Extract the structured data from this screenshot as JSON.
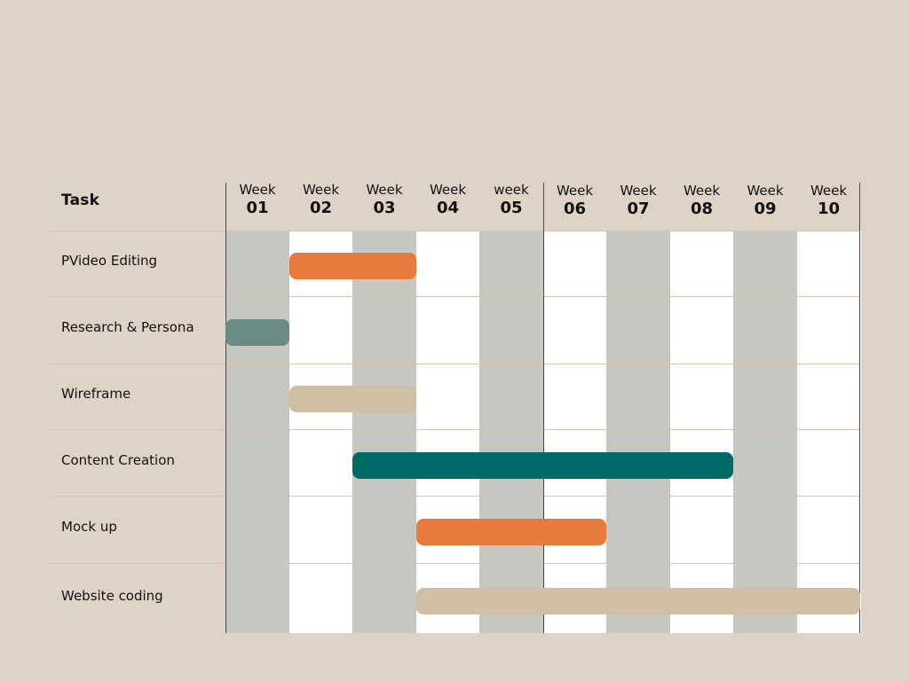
{
  "chart_data": {
    "type": "gantt",
    "task_header": "Task",
    "columns": [
      {
        "label": "Week",
        "num": "01"
      },
      {
        "label": "Week",
        "num": "02"
      },
      {
        "label": "Week",
        "num": "03"
      },
      {
        "label": "Week",
        "num": "04"
      },
      {
        "label": "week",
        "num": "05"
      },
      {
        "label": "Week",
        "num": "06"
      },
      {
        "label": "Week",
        "num": "07"
      },
      {
        "label": "Week",
        "num": "08"
      },
      {
        "label": "Week",
        "num": "09"
      },
      {
        "label": "Week",
        "num": "10"
      }
    ],
    "tasks": [
      {
        "name": "PVideo Editing",
        "start_week": 2,
        "end_week": 3,
        "color": "#e97a3e"
      },
      {
        "name": "Research & Persona",
        "start_week": 1,
        "end_week": 1,
        "color": "#6b8c84"
      },
      {
        "name": "Wireframe",
        "start_week": 2,
        "end_week": 3,
        "color": "#cfbfa5"
      },
      {
        "name": "Content Creation",
        "start_week": 3,
        "end_week": 8,
        "color": "#006a66"
      },
      {
        "name": "Mock up",
        "start_week": 4,
        "end_week": 6,
        "color": "#e97a3e"
      },
      {
        "name": "Website coding",
        "start_week": 4,
        "end_week": 10,
        "color": "#cfbfa5"
      }
    ],
    "colors": {
      "background": "#dfd3c7",
      "stripe_gray": "#c6c7c0",
      "stripe_white": "#ffffff"
    }
  }
}
